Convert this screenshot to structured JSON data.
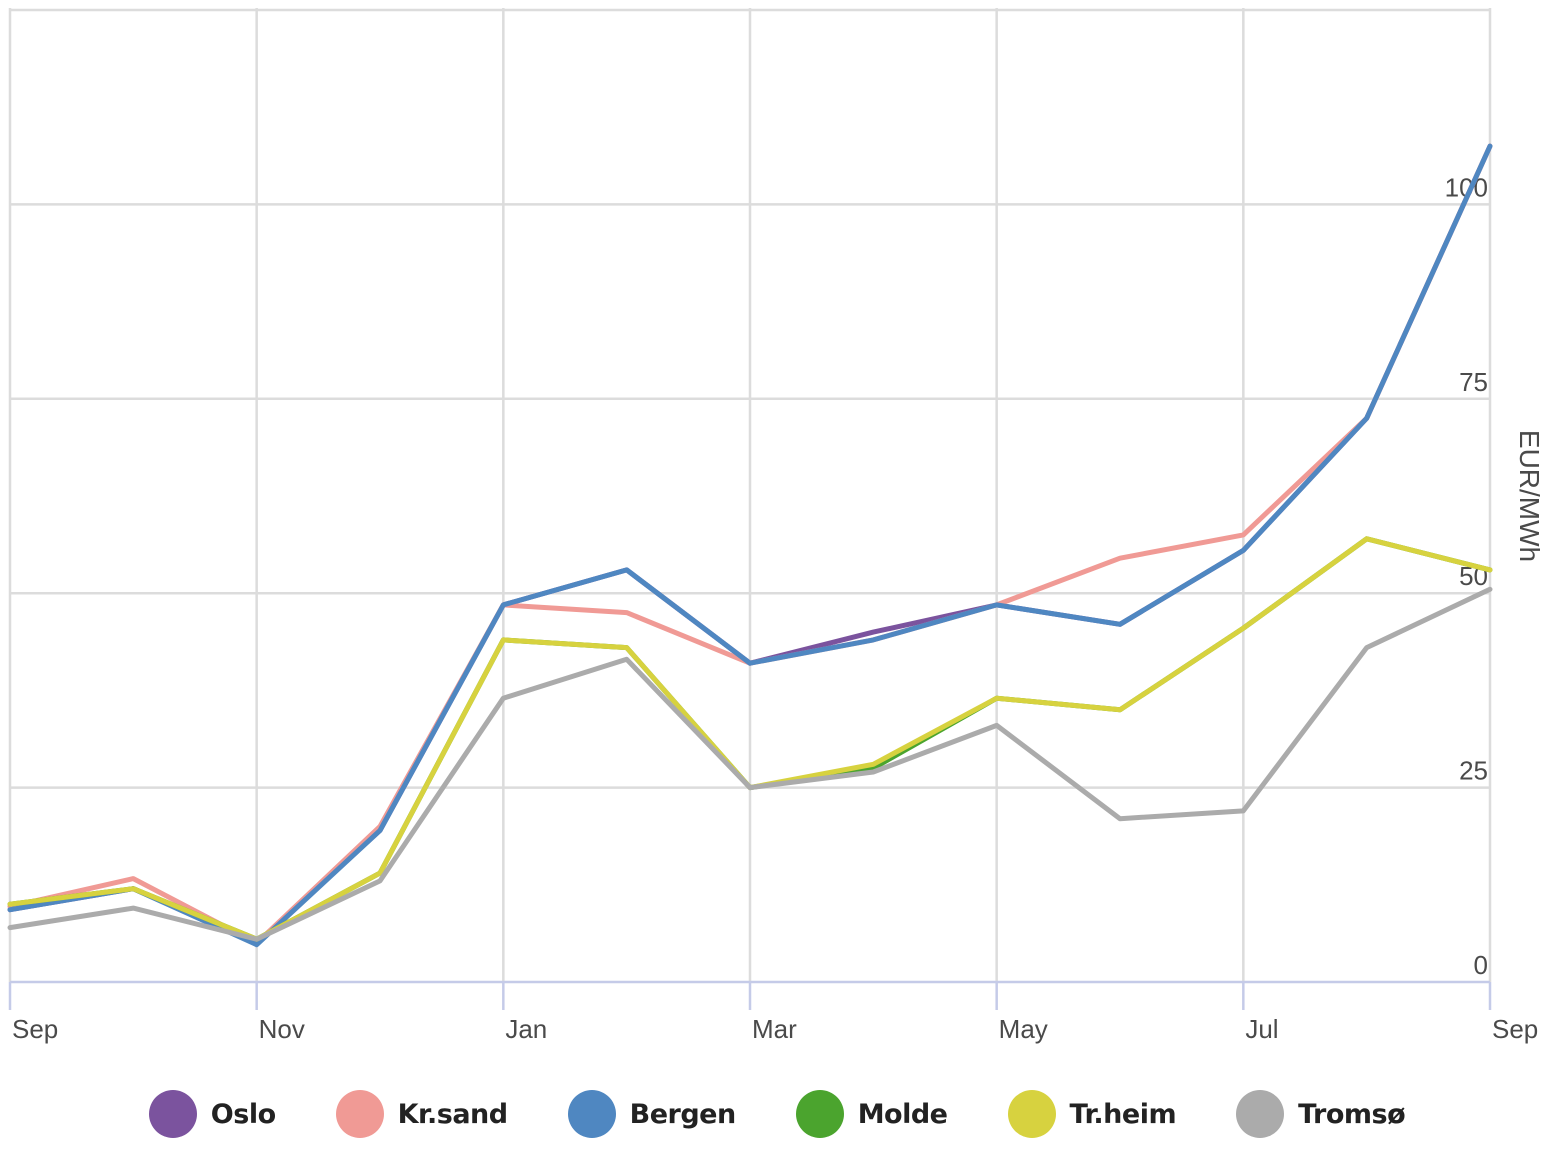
{
  "chart_data": {
    "type": "line",
    "title": "",
    "xlabel": "",
    "ylabel": "EUR/MWh",
    "ylim": [
      0,
      125
    ],
    "yticks": [
      0,
      25,
      50,
      75,
      100
    ],
    "xticks": [
      "Sep",
      "Nov",
      "Jan",
      "Mar",
      "May",
      "Jul",
      "Sep"
    ],
    "x": [
      "Sep",
      "Oct",
      "Nov",
      "Dec",
      "Jan",
      "Feb",
      "Mar",
      "Apr",
      "May",
      "Jun",
      "Jul",
      "Aug",
      "Sep"
    ],
    "grid": true,
    "legend_position": "bottom",
    "series": [
      {
        "name": "Oslo",
        "color": "#7b539e",
        "values": [
          9.3,
          12.0,
          5.0,
          19.5,
          48.5,
          53.0,
          41.0,
          45.0,
          48.5,
          46.0,
          55.5,
          72.5,
          107.5
        ]
      },
      {
        "name": "Kr.sand",
        "color": "#f09a95",
        "values": [
          9.7,
          13.3,
          5.0,
          20.0,
          48.5,
          47.5,
          41.0,
          44.0,
          48.5,
          54.5,
          57.5,
          72.5,
          107.5
        ]
      },
      {
        "name": "Bergen",
        "color": "#4f87c1",
        "values": [
          9.3,
          12.0,
          4.8,
          19.5,
          48.5,
          53.0,
          41.0,
          44.0,
          48.5,
          46.0,
          55.5,
          72.5,
          107.5
        ]
      },
      {
        "name": "Molde",
        "color": "#4ba42e",
        "values": [
          10.0,
          12.0,
          5.5,
          14.0,
          44.0,
          43.0,
          25.0,
          27.5,
          36.5,
          35.0,
          45.5,
          57.0,
          53.0
        ]
      },
      {
        "name": "Tr.heim",
        "color": "#d7d23f",
        "values": [
          10.0,
          12.0,
          5.5,
          14.0,
          44.0,
          43.0,
          25.0,
          28.0,
          36.5,
          35.0,
          45.5,
          57.0,
          53.0
        ]
      },
      {
        "name": "Tromsø",
        "color": "#ababab",
        "values": [
          7.0,
          9.5,
          5.5,
          13.0,
          36.5,
          41.5,
          25.0,
          27.0,
          33.0,
          21.0,
          22.0,
          43.0,
          50.5
        ]
      }
    ]
  }
}
